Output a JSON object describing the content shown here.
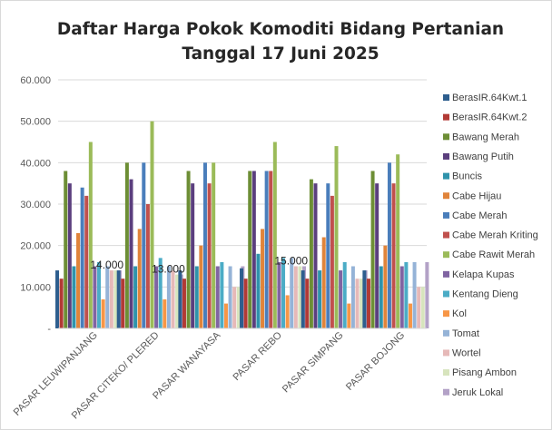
{
  "chart_data": {
    "type": "bar",
    "title": [
      "Daftar Harga Pokok Komoditi Bidang Pertanian",
      "Tanggal 17 Juni 2025"
    ],
    "categories": [
      "PASAR LEUWIPANJANG",
      "PASAR CITEKO/ PLERED",
      "PASAR WANAYASA",
      "PASAR REBO",
      "PASAR SIMPANG",
      "PASAR BOJONG"
    ],
    "ylim": [
      0,
      60000
    ],
    "yticks": [
      "-",
      "10.000",
      "20.000",
      "30.000",
      "40.000",
      "50.000",
      "60.000"
    ],
    "grid": true,
    "legend": "right",
    "series": [
      {
        "name": "BerasIR.64Kwt.1",
        "color": "#2e5e8e",
        "values": [
          14000,
          14000,
          14000,
          14500,
          14000,
          14000
        ]
      },
      {
        "name": "BerasIR.64Kwt.2",
        "color": "#b23a35",
        "values": [
          12000,
          12000,
          12000,
          12000,
          12000,
          12000
        ]
      },
      {
        "name": "Bawang Merah",
        "color": "#6d8e35",
        "values": [
          38000,
          40000,
          38000,
          38000,
          36000,
          38000
        ]
      },
      {
        "name": "Bawang Putih",
        "color": "#5b3f7e",
        "values": [
          35000,
          36000,
          35000,
          38000,
          35000,
          35000
        ]
      },
      {
        "name": "Buncis",
        "color": "#2f93ab",
        "values": [
          15000,
          15000,
          15000,
          18000,
          14000,
          15000
        ]
      },
      {
        "name": "Cabe Hijau",
        "color": "#e0843a",
        "values": [
          23000,
          24000,
          20000,
          24000,
          22000,
          20000
        ]
      },
      {
        "name": "Cabe Merah",
        "color": "#4a7ebb",
        "values": [
          34000,
          40000,
          40000,
          38000,
          35000,
          40000
        ]
      },
      {
        "name": "Cabe Merah Kriting",
        "color": "#c0504d",
        "values": [
          32000,
          30000,
          35000,
          38000,
          32000,
          35000
        ]
      },
      {
        "name": "Cabe Rawit Merah",
        "color": "#9bbb59",
        "values": [
          45000,
          50000,
          40000,
          45000,
          44000,
          42000
        ]
      },
      {
        "name": "Kelapa Kupas",
        "color": "#8064a2",
        "values": [
          15000,
          15000,
          15000,
          16000,
          14000,
          15000
        ]
      },
      {
        "name": "Kentang Dieng",
        "color": "#4bacc6",
        "values": [
          16000,
          17000,
          16000,
          17000,
          16000,
          16000
        ]
      },
      {
        "name": "Kol",
        "color": "#f79646",
        "values": [
          7000,
          7000,
          6000,
          8000,
          6000,
          6000
        ]
      },
      {
        "name": "Tomat",
        "color": "#95b3d7",
        "values": [
          15000,
          15000,
          15000,
          17000,
          15000,
          16000
        ]
      },
      {
        "name": "Wortel",
        "color": "#e6b9b8",
        "values": [
          14000,
          14000,
          10000,
          15000,
          12000,
          10000
        ]
      },
      {
        "name": "Pisang Ambon",
        "color": "#d7e4bd",
        "values": [
          14000,
          13000,
          10000,
          15000,
          12000,
          10000
        ]
      },
      {
        "name": "Jeruk Lokal",
        "color": "#b3a2c7",
        "values": [
          14000,
          13000,
          15000,
          15000,
          14000,
          16000
        ]
      }
    ],
    "data_labels": [
      {
        "category": 0,
        "series": 14,
        "text": "14.000"
      },
      {
        "category": 1,
        "series": 14,
        "text": "13.000"
      },
      {
        "category": 3,
        "series": 14,
        "text": "15.000"
      }
    ]
  }
}
